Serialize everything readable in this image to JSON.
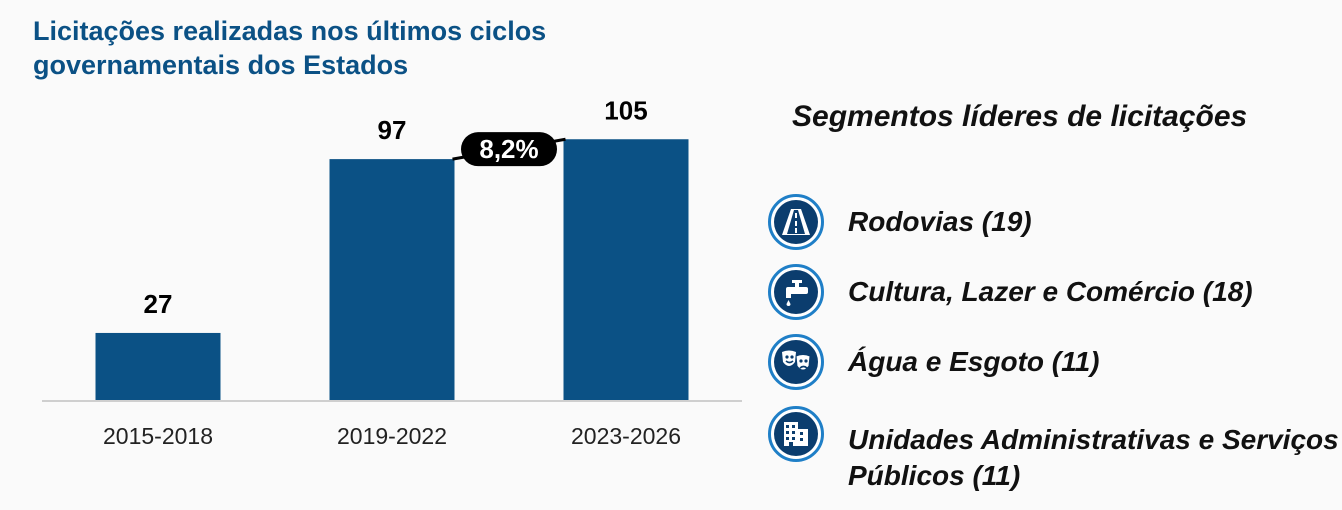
{
  "title": "Licitações realizadas nos últimos ciclos governamentais dos Estados",
  "chart_data": {
    "type": "bar",
    "categories": [
      "2015-2018",
      "2019-2022",
      "2023-2026"
    ],
    "values": [
      27,
      97,
      105
    ],
    "value_labels": [
      "27",
      "97",
      "105"
    ],
    "ylim": [
      0,
      120
    ],
    "bar_color": "#0b5185",
    "growth_annotation": "8,2%",
    "grid": false
  },
  "segments": {
    "title": "Segmentos líderes de licitações",
    "items": [
      {
        "label": "Rodovias (19)",
        "icon": "road-icon"
      },
      {
        "label": "Cultura, Lazer e Comércio (18)",
        "icon": "faucet-icon"
      },
      {
        "label": "Água e Esgoto (11)",
        "icon": "theater-masks-icon"
      },
      {
        "label": "Unidades Administrativas e Serviços Públicos (11)",
        "icon": "building-icon"
      }
    ]
  }
}
